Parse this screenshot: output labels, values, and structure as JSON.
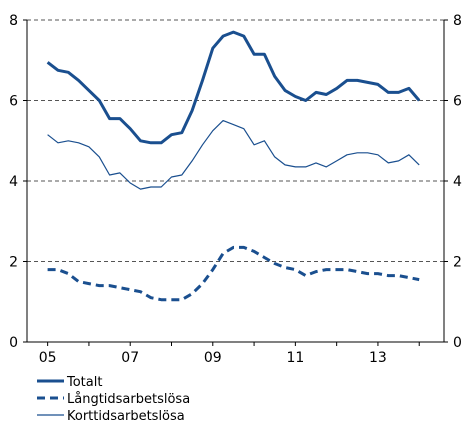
{
  "chart_data": {
    "type": "line",
    "title": "",
    "xlabel": "",
    "ylabel": "",
    "x_tick_labels": [
      "05",
      "07",
      "09",
      "11",
      "13"
    ],
    "x_tick_years": [
      2005,
      2007,
      2009,
      2011,
      2013
    ],
    "xlim": [
      2004.5,
      2014.6
    ],
    "ylim": [
      0,
      8
    ],
    "y_ticks": [
      "0",
      "2",
      "4",
      "6",
      "8"
    ],
    "y_tick_values": [
      0,
      2,
      4,
      6,
      8
    ],
    "grid": "horizontal dashed",
    "legend_position": "bottom-left",
    "series": [
      {
        "name": "Totalt",
        "color": "#1a4f8f",
        "style": "solid-thick",
        "x": [
          2005.0,
          2005.25,
          2005.5,
          2005.75,
          2006.0,
          2006.25,
          2006.5,
          2006.75,
          2007.0,
          2007.25,
          2007.5,
          2007.75,
          2008.0,
          2008.25,
          2008.5,
          2008.75,
          2009.0,
          2009.25,
          2009.5,
          2009.75,
          2010.0,
          2010.25,
          2010.5,
          2010.75,
          2011.0,
          2011.25,
          2011.5,
          2011.75,
          2012.0,
          2012.25,
          2012.5,
          2012.75,
          2013.0,
          2013.25,
          2013.5,
          2013.75,
          2014.0
        ],
        "values": [
          6.95,
          6.75,
          6.7,
          6.5,
          6.25,
          6.0,
          5.55,
          5.55,
          5.3,
          5.0,
          4.95,
          4.95,
          5.15,
          5.2,
          5.75,
          6.5,
          7.3,
          7.6,
          7.7,
          7.6,
          7.15,
          7.15,
          6.6,
          6.25,
          6.1,
          6.0,
          6.2,
          6.15,
          6.3,
          6.5,
          6.5,
          6.45,
          6.4,
          6.2,
          6.2,
          6.3,
          6.0
        ]
      },
      {
        "name": "Långtidsarbetslösa",
        "color": "#1a4f8f",
        "style": "dashed-thick",
        "x": [
          2005.0,
          2005.25,
          2005.5,
          2005.75,
          2006.0,
          2006.25,
          2006.5,
          2006.75,
          2007.0,
          2007.25,
          2007.5,
          2007.75,
          2008.0,
          2008.25,
          2008.5,
          2008.75,
          2009.0,
          2009.25,
          2009.5,
          2009.75,
          2010.0,
          2010.25,
          2010.5,
          2010.75,
          2011.0,
          2011.25,
          2011.5,
          2011.75,
          2012.0,
          2012.25,
          2012.5,
          2012.75,
          2013.0,
          2013.25,
          2013.5,
          2013.75,
          2014.0
        ],
        "values": [
          1.8,
          1.8,
          1.7,
          1.5,
          1.45,
          1.4,
          1.4,
          1.35,
          1.3,
          1.25,
          1.1,
          1.05,
          1.05,
          1.05,
          1.2,
          1.45,
          1.8,
          2.2,
          2.35,
          2.35,
          2.25,
          2.1,
          1.95,
          1.85,
          1.8,
          1.65,
          1.75,
          1.8,
          1.8,
          1.8,
          1.75,
          1.7,
          1.7,
          1.65,
          1.65,
          1.6,
          1.55
        ]
      },
      {
        "name": "Korttidsarbetslösa",
        "color": "#1a4f8f",
        "style": "solid-thin",
        "x": [
          2005.0,
          2005.25,
          2005.5,
          2005.75,
          2006.0,
          2006.25,
          2006.5,
          2006.75,
          2007.0,
          2007.25,
          2007.5,
          2007.75,
          2008.0,
          2008.25,
          2008.5,
          2008.75,
          2009.0,
          2009.25,
          2009.5,
          2009.75,
          2010.0,
          2010.25,
          2010.5,
          2010.75,
          2011.0,
          2011.25,
          2011.5,
          2011.75,
          2012.0,
          2012.25,
          2012.5,
          2012.75,
          2013.0,
          2013.25,
          2013.5,
          2013.75,
          2014.0
        ],
        "values": [
          5.15,
          4.95,
          5.0,
          4.95,
          4.85,
          4.6,
          4.15,
          4.2,
          3.95,
          3.8,
          3.85,
          3.85,
          4.1,
          4.15,
          4.5,
          4.9,
          5.25,
          5.5,
          5.4,
          5.3,
          4.9,
          5.0,
          4.6,
          4.4,
          4.35,
          4.35,
          4.45,
          4.35,
          4.5,
          4.65,
          4.7,
          4.7,
          4.65,
          4.45,
          4.5,
          4.65,
          4.4
        ]
      }
    ]
  }
}
